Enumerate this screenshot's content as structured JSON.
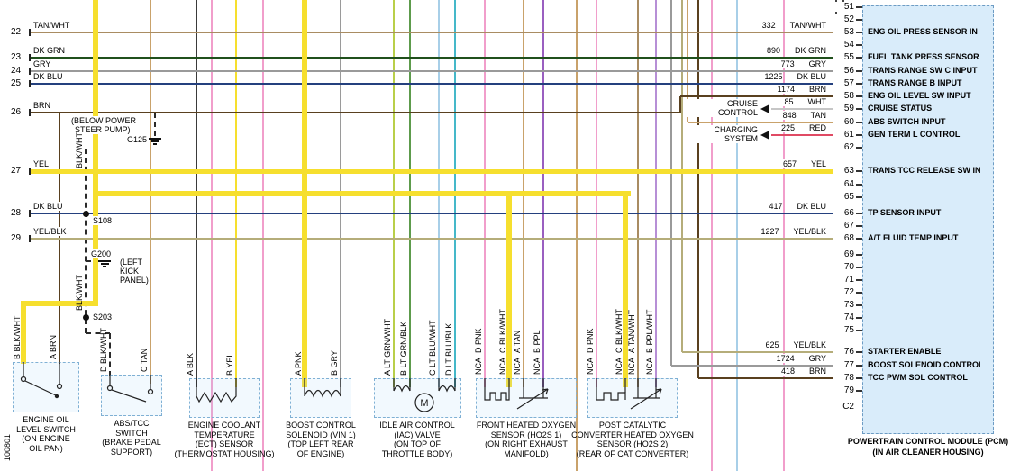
{
  "sheet": {
    "number": "100801"
  },
  "palette": {
    "highlight": "#f6df2e",
    "TAN/WHT": "#a98c62",
    "DK GRN": "#20501c",
    "GRY": "#9a9a9a",
    "DK BLU": "#24407e",
    "BRN": "#59401f",
    "YEL": "#f6df2e",
    "YEL/BLK": "#b5ad7a",
    "WHT": "#c6c6c6",
    "TAN": "#c9a26b",
    "RED": "#e04a64",
    "BLK": "#3a3a3a",
    "PNK": "#f19ecb",
    "PPL": "#9a5fc0",
    "PPL/WHT": "#b78fd6",
    "LT GRN/WHT": "#b9cf4a",
    "LT GRN/BLK": "#5d9b4c",
    "LT BLU/WHT": "#a8cfe8",
    "LT BLU/BLK": "#45b8c9"
  },
  "left_wires": [
    {
      "terminal": "22",
      "color": "TAN/WHT"
    },
    {
      "terminal": "23",
      "color": "DK GRN"
    },
    {
      "terminal": "24",
      "color": "GRY"
    },
    {
      "terminal": "25",
      "color": "DK BLU"
    },
    {
      "terminal": "26",
      "color": "BRN"
    },
    {
      "terminal": "27",
      "color": "YEL"
    },
    {
      "terminal": "28",
      "color": "DK BLU"
    },
    {
      "terminal": "29",
      "color": "YEL/BLK"
    }
  ],
  "right_wires": [
    {
      "circuit": "332",
      "color": "TAN/WHT",
      "pin": "53"
    },
    {
      "circuit": "890",
      "color": "DK GRN",
      "pin": "55"
    },
    {
      "circuit": "773",
      "color": "GRY",
      "pin": "56"
    },
    {
      "circuit": "1225",
      "color": "DK BLU",
      "pin": "57"
    },
    {
      "circuit": "1174",
      "color": "BRN",
      "pin": "58"
    },
    {
      "circuit": "85",
      "color": "WHT",
      "pin": "59"
    },
    {
      "circuit": "848",
      "color": "TAN",
      "pin": "60"
    },
    {
      "circuit": "225",
      "color": "RED",
      "pin": "61"
    },
    {
      "circuit": "657",
      "color": "YEL",
      "pin": "63"
    },
    {
      "circuit": "417",
      "color": "DK BLU",
      "pin": "66"
    },
    {
      "circuit": "1227",
      "color": "YEL/BLK",
      "pin": "68"
    },
    {
      "circuit": "625",
      "color": "YEL/BLK",
      "pin": "76"
    },
    {
      "circuit": "1724",
      "color": "GRY",
      "pin": "77"
    },
    {
      "circuit": "418",
      "color": "BRN",
      "pin": "78"
    }
  ],
  "systems": [
    {
      "line1": "CRUISE",
      "line2": "CONTROL"
    },
    {
      "line1": "CHARGING",
      "line2": "SYSTEM"
    }
  ],
  "references": {
    "g125": {
      "id": "G125",
      "wire": "BLK/WHT",
      "note1": "(BELOW POWER",
      "note2": "STEER PUMP)"
    },
    "g200": {
      "id": "G200",
      "wire": "BLK/WHT",
      "note1": "(LEFT",
      "note2": "KICK",
      "note3": "PANEL)"
    },
    "s108": {
      "id": "S108"
    },
    "s203": {
      "id": "S203"
    }
  },
  "pcm": {
    "name_line1": "POWERTRAIN CONTROL MODULE (PCM)",
    "name_line2": "(IN AIR CLEANER HOUSING)",
    "connector": "C2",
    "pins": [
      {
        "num": "51",
        "label": ""
      },
      {
        "num": "52",
        "label": ""
      },
      {
        "num": "53",
        "label": "ENG OIL PRESS SENSOR IN"
      },
      {
        "num": "54",
        "label": ""
      },
      {
        "num": "55",
        "label": "FUEL TANK PRESS SENSOR"
      },
      {
        "num": "56",
        "label": "TRANS RANGE SW C INPUT"
      },
      {
        "num": "57",
        "label": "TRANS RANGE B INPUT"
      },
      {
        "num": "58",
        "label": "ENG OIL LEVEL SW INPUT"
      },
      {
        "num": "59",
        "label": "CRUISE STATUS"
      },
      {
        "num": "60",
        "label": "ABS SWITCH INPUT"
      },
      {
        "num": "61",
        "label": "GEN TERM L CONTROL"
      },
      {
        "num": "62",
        "label": ""
      },
      {
        "num": "63",
        "label": "TRANS TCC RELEASE SW IN"
      },
      {
        "num": "64",
        "label": ""
      },
      {
        "num": "65",
        "label": ""
      },
      {
        "num": "66",
        "label": "TP SENSOR INPUT"
      },
      {
        "num": "67",
        "label": ""
      },
      {
        "num": "68",
        "label": "A/T FLUID TEMP INPUT"
      },
      {
        "num": "69",
        "label": ""
      },
      {
        "num": "70",
        "label": ""
      },
      {
        "num": "71",
        "label": ""
      },
      {
        "num": "72",
        "label": ""
      },
      {
        "num": "73",
        "label": ""
      },
      {
        "num": "74",
        "label": ""
      },
      {
        "num": "75",
        "label": ""
      },
      {
        "num": "76",
        "label": "STARTER ENABLE"
      },
      {
        "num": "77",
        "label": "BOOST SOLENOID CONTROL"
      },
      {
        "num": "78",
        "label": "TCC PWM SOL CONTROL"
      },
      {
        "num": "79",
        "label": ""
      }
    ]
  },
  "components": [
    {
      "name_lines": [
        "ENGINE OIL",
        "LEVEL SWITCH",
        "(ON ENGINE",
        "OIL PAN)"
      ],
      "terminals": [
        {
          "pin": "B",
          "color": "BLK/WHT"
        },
        {
          "pin": "A",
          "color": "BRN"
        }
      ]
    },
    {
      "name_lines": [
        "ABS/TCC",
        "SWITCH",
        "(BRAKE PEDAL",
        "SUPPORT)"
      ],
      "terminals": [
        {
          "pin": "D",
          "color": "BLK/WHT"
        },
        {
          "pin": "C",
          "color": "TAN"
        }
      ]
    },
    {
      "name_lines": [
        "ENGINE COOLANT",
        "TEMPERATURE",
        "(ECT) SENSOR",
        "(THERMOSTAT HOUSING)"
      ],
      "terminals": [
        {
          "pin": "A",
          "color": "BLK"
        },
        {
          "pin": "B",
          "color": "YEL"
        }
      ]
    },
    {
      "name_lines": [
        "BOOST CONTROL",
        "SOLENOID (VIN 1)",
        "(TOP LEFT REAR",
        "OF ENGINE)"
      ],
      "terminals": [
        {
          "pin": "A",
          "color": "PNK"
        },
        {
          "pin": "B",
          "color": "GRY"
        }
      ]
    },
    {
      "name_lines": [
        "IDLE AIR CONTROL",
        "(IAC) VALVE",
        "(ON TOP OF",
        "THROTTLE BODY)"
      ],
      "terminals": [
        {
          "pin": "A",
          "color": "LT GRN/WHT"
        },
        {
          "pin": "B",
          "color": "LT GRN/BLK"
        },
        {
          "pin": "C",
          "color": "LT BLU/WHT"
        },
        {
          "pin": "D",
          "color": "LT BLU/BLK"
        }
      ]
    },
    {
      "name_lines": [
        "FRONT HEATED OXYGEN",
        "SENSOR (HO2S 1)",
        "(ON RIGHT EXHAUST",
        "MANIFOLD)"
      ],
      "terminals": [
        {
          "pin": "D",
          "color": "PNK",
          "nca": "NCA"
        },
        {
          "pin": "C",
          "color": "BLK/WHT",
          "nca": "NCA"
        },
        {
          "pin": "A",
          "color": "TAN",
          "nca": "NCA"
        },
        {
          "pin": "B",
          "color": "PPL",
          "nca": "NCA"
        }
      ]
    },
    {
      "name_lines": [
        "POST CATALYTIC",
        "CONVERTER HEATED OXYGEN",
        "SENSOR (HO2S 2)",
        "(REAR OF CAT CONVERTER)"
      ],
      "terminals": [
        {
          "pin": "D",
          "color": "PNK",
          "nca": "NCA"
        },
        {
          "pin": "C",
          "color": "BLK/WHT",
          "nca": "NCA"
        },
        {
          "pin": "A",
          "color": "TAN/WHT",
          "nca": "NCA"
        },
        {
          "pin": "B",
          "color": "PPL/WHT",
          "nca": "NCA"
        }
      ]
    }
  ]
}
